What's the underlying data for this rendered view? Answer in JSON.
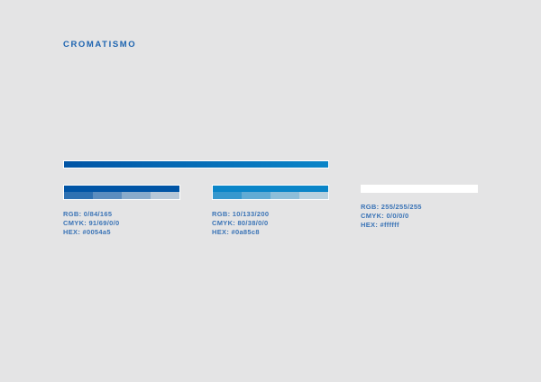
{
  "page": {
    "title": "CROMATISMO",
    "background_hex": "#e4e4e5",
    "title_color_hex": "#1d64b0",
    "label_color_hex": "#3b74b6"
  },
  "gradient_bar": {
    "from_hex": "#0054a5",
    "to_hex": "#0a85c8"
  },
  "swatches": [
    {
      "name": "corporate-dark-blue",
      "hex": "#0054a5",
      "rgb_label": "RGB: 0/84/165",
      "cmyk_label": "CMYK: 91/69/0/0",
      "hex_label": "HEX: #0054a5",
      "tints": [
        "0.8",
        "0.6",
        "0.4",
        "0.2"
      ]
    },
    {
      "name": "corporate-light-blue",
      "hex": "#0a85c8",
      "rgb_label": "RGB: 10/133/200",
      "cmyk_label": "CMYK: 80/38/0/0",
      "hex_label": "HEX: #0a85c8",
      "tints": [
        "0.8",
        "0.6",
        "0.4",
        "0.2"
      ]
    },
    {
      "name": "corporate-white",
      "hex": "#ffffff",
      "rgb_label": "RGB: 255/255/255",
      "cmyk_label": "CMYK: 0/0/0/0",
      "hex_label": "HEX: #ffffff",
      "tints": []
    }
  ]
}
